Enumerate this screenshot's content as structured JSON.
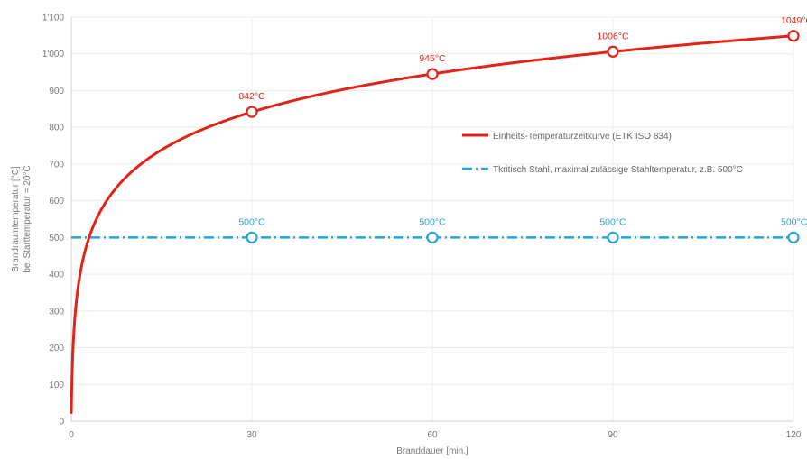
{
  "chart_data": {
    "type": "line",
    "title": "",
    "xlabel": "Branddauer [min.]",
    "ylabel_lines": [
      "Brandraumtemperatur [°C]",
      "bei Starttemperatur = 20°C"
    ],
    "xlim": [
      0,
      120
    ],
    "ylim": [
      0,
      1100
    ],
    "x_ticks": [
      0,
      30,
      60,
      90,
      120
    ],
    "x_tick_labels": [
      "0",
      "30",
      "60",
      "90",
      "120"
    ],
    "y_ticks": [
      0,
      100,
      200,
      300,
      400,
      500,
      600,
      700,
      800,
      900,
      1000,
      1100
    ],
    "y_tick_labels": [
      "0",
      "100",
      "200",
      "300",
      "400",
      "500",
      "600",
      "700",
      "800",
      "900",
      "1'000",
      "1'100"
    ],
    "grid": true,
    "legend_position": "right",
    "series": [
      {
        "name": "Einheits-Temperaturzeitkurve (ETK ISO 834)",
        "color": "#e2231a",
        "style": "solid",
        "formula_note": "ETK",
        "markers": [
          {
            "x": 30,
            "y": 842,
            "label": "842°C"
          },
          {
            "x": 60,
            "y": 945,
            "label": "945°C"
          },
          {
            "x": 90,
            "y": 1006,
            "label": "1006°C"
          },
          {
            "x": 120,
            "y": 1049,
            "label": "1049°C"
          }
        ]
      },
      {
        "name": "Tkritisch Stahl, maximal zulässige Stahltemperatur, z.B. 500°C",
        "color": "#29a3dc",
        "style": "dashdot",
        "value": 500,
        "markers": [
          {
            "x": 30,
            "y": 500,
            "label": "500°C"
          },
          {
            "x": 60,
            "y": 500,
            "label": "500°C"
          },
          {
            "x": 90,
            "y": 500,
            "label": "500°C"
          },
          {
            "x": 120,
            "y": 500,
            "label": "500°C"
          }
        ]
      }
    ]
  }
}
